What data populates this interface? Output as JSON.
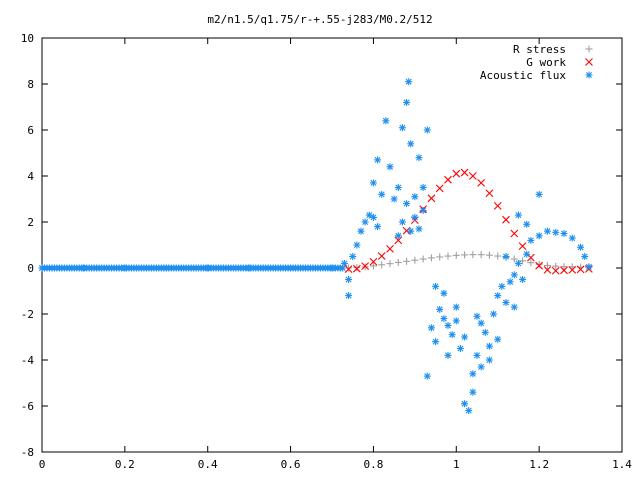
{
  "chart_data": {
    "type": "scatter",
    "title": "m2/n1.5/q1.75/r-+.55-j283/M0.2/512",
    "xlabel": "",
    "ylabel": "",
    "xlim": [
      0,
      1.4
    ],
    "ylim": [
      -8,
      10
    ],
    "x_ticks": [
      "0",
      "0.2",
      "0.4",
      "0.6",
      "0.8",
      "1",
      "1.2",
      "1.4"
    ],
    "y_ticks": [
      "10",
      "8",
      "6",
      "4",
      "2",
      "0",
      "-2",
      "-4",
      "-6",
      "-8"
    ],
    "grid": false,
    "legend_position": "top-right",
    "series": [
      {
        "name": "R stress",
        "marker": "+",
        "color": "#a0a0a0",
        "points": [
          [
            0.74,
            0.0
          ],
          [
            0.76,
            0.02
          ],
          [
            0.78,
            0.05
          ],
          [
            0.8,
            0.09
          ],
          [
            0.82,
            0.14
          ],
          [
            0.84,
            0.19
          ],
          [
            0.86,
            0.24
          ],
          [
            0.88,
            0.29
          ],
          [
            0.9,
            0.34
          ],
          [
            0.92,
            0.39
          ],
          [
            0.94,
            0.44
          ],
          [
            0.96,
            0.48
          ],
          [
            0.98,
            0.52
          ],
          [
            1.0,
            0.55
          ],
          [
            1.02,
            0.57
          ],
          [
            1.04,
            0.58
          ],
          [
            1.06,
            0.58
          ],
          [
            1.08,
            0.56
          ],
          [
            1.1,
            0.52
          ],
          [
            1.12,
            0.46
          ],
          [
            1.14,
            0.39
          ],
          [
            1.16,
            0.31
          ],
          [
            1.18,
            0.23
          ],
          [
            1.2,
            0.16
          ],
          [
            1.22,
            0.11
          ],
          [
            1.24,
            0.08
          ],
          [
            1.26,
            0.06
          ],
          [
            1.28,
            0.05
          ],
          [
            1.3,
            0.04
          ],
          [
            1.32,
            0.03
          ]
        ]
      },
      {
        "name": "G work",
        "marker": "x",
        "color": "#ff0000",
        "points": [
          [
            0.74,
            -0.05
          ],
          [
            0.76,
            -0.03
          ],
          [
            0.78,
            0.08
          ],
          [
            0.8,
            0.27
          ],
          [
            0.82,
            0.52
          ],
          [
            0.84,
            0.83
          ],
          [
            0.86,
            1.2
          ],
          [
            0.88,
            1.62
          ],
          [
            0.9,
            2.08
          ],
          [
            0.92,
            2.56
          ],
          [
            0.94,
            3.03
          ],
          [
            0.96,
            3.46
          ],
          [
            0.98,
            3.84
          ],
          [
            1.0,
            4.1
          ],
          [
            1.02,
            4.15
          ],
          [
            1.04,
            4.0
          ],
          [
            1.06,
            3.7
          ],
          [
            1.08,
            3.25
          ],
          [
            1.1,
            2.7
          ],
          [
            1.12,
            2.1
          ],
          [
            1.14,
            1.5
          ],
          [
            1.16,
            0.95
          ],
          [
            1.18,
            0.45
          ],
          [
            1.2,
            0.1
          ],
          [
            1.22,
            -0.08
          ],
          [
            1.24,
            -0.12
          ],
          [
            1.26,
            -0.1
          ],
          [
            1.28,
            -0.08
          ],
          [
            1.3,
            -0.06
          ],
          [
            1.32,
            -0.04
          ]
        ]
      },
      {
        "name": "Acoustic flux",
        "marker": "*",
        "color": "#1e8ff0",
        "points": [
          [
            0.73,
            0.2
          ],
          [
            0.74,
            -0.5
          ],
          [
            0.74,
            -1.2
          ],
          [
            0.75,
            0.5
          ],
          [
            0.76,
            1.0
          ],
          [
            0.77,
            1.6
          ],
          [
            0.78,
            2.0
          ],
          [
            0.79,
            2.3
          ],
          [
            0.8,
            2.2
          ],
          [
            0.81,
            1.8
          ],
          [
            0.8,
            3.7
          ],
          [
            0.81,
            4.7
          ],
          [
            0.82,
            3.2
          ],
          [
            0.83,
            6.4
          ],
          [
            0.84,
            4.4
          ],
          [
            0.85,
            3.0
          ],
          [
            0.86,
            3.5
          ],
          [
            0.87,
            6.1
          ],
          [
            0.88,
            7.2
          ],
          [
            0.885,
            8.1
          ],
          [
            0.89,
            5.4
          ],
          [
            0.9,
            3.1
          ],
          [
            0.91,
            4.8
          ],
          [
            0.92,
            3.5
          ],
          [
            0.93,
            6.0
          ],
          [
            0.86,
            1.4
          ],
          [
            0.87,
            2.0
          ],
          [
            0.88,
            2.8
          ],
          [
            0.89,
            1.6
          ],
          [
            0.9,
            2.2
          ],
          [
            0.91,
            1.7
          ],
          [
            0.92,
            2.5
          ],
          [
            0.93,
            -4.7
          ],
          [
            0.94,
            -2.6
          ],
          [
            0.95,
            -3.2
          ],
          [
            0.96,
            -1.8
          ],
          [
            0.97,
            -2.2
          ],
          [
            0.98,
            -3.8
          ],
          [
            0.99,
            -2.9
          ],
          [
            1.0,
            -1.7
          ],
          [
            1.01,
            -3.5
          ],
          [
            1.02,
            -5.9
          ],
          [
            1.03,
            -6.2
          ],
          [
            1.04,
            -5.4
          ],
          [
            1.05,
            -3.8
          ],
          [
            1.06,
            -4.3
          ],
          [
            1.07,
            -2.8
          ],
          [
            1.08,
            -3.4
          ],
          [
            1.09,
            -2.0
          ],
          [
            1.1,
            -1.2
          ],
          [
            1.11,
            -0.8
          ],
          [
            1.12,
            -1.5
          ],
          [
            1.13,
            -0.6
          ],
          [
            1.14,
            -1.7
          ],
          [
            1.0,
            -2.3
          ],
          [
            1.02,
            -3.0
          ],
          [
            1.04,
            -4.6
          ],
          [
            1.06,
            -2.4
          ],
          [
            1.08,
            -4.0
          ],
          [
            0.95,
            -0.8
          ],
          [
            0.97,
            -1.1
          ],
          [
            0.98,
            -2.5
          ],
          [
            1.05,
            -2.1
          ],
          [
            1.1,
            -3.1
          ],
          [
            1.12,
            0.5
          ],
          [
            1.14,
            -0.3
          ],
          [
            1.15,
            0.2
          ],
          [
            1.16,
            -0.5
          ],
          [
            1.17,
            0.6
          ],
          [
            1.15,
            2.3
          ],
          [
            1.17,
            1.9
          ],
          [
            1.18,
            1.2
          ],
          [
            1.2,
            1.4
          ],
          [
            1.2,
            3.2
          ],
          [
            1.22,
            1.6
          ],
          [
            1.24,
            1.55
          ],
          [
            1.26,
            1.5
          ],
          [
            1.28,
            1.3
          ],
          [
            1.3,
            0.9
          ],
          [
            1.31,
            0.5
          ],
          [
            1.32,
            0.05
          ],
          [
            0.0,
            0.0
          ],
          [
            0.1,
            0.0
          ],
          [
            0.2,
            0.0
          ],
          [
            0.3,
            0.0
          ],
          [
            0.4,
            0.0
          ],
          [
            0.5,
            0.0
          ],
          [
            0.6,
            0.0
          ],
          [
            0.7,
            0.0
          ]
        ]
      }
    ]
  }
}
